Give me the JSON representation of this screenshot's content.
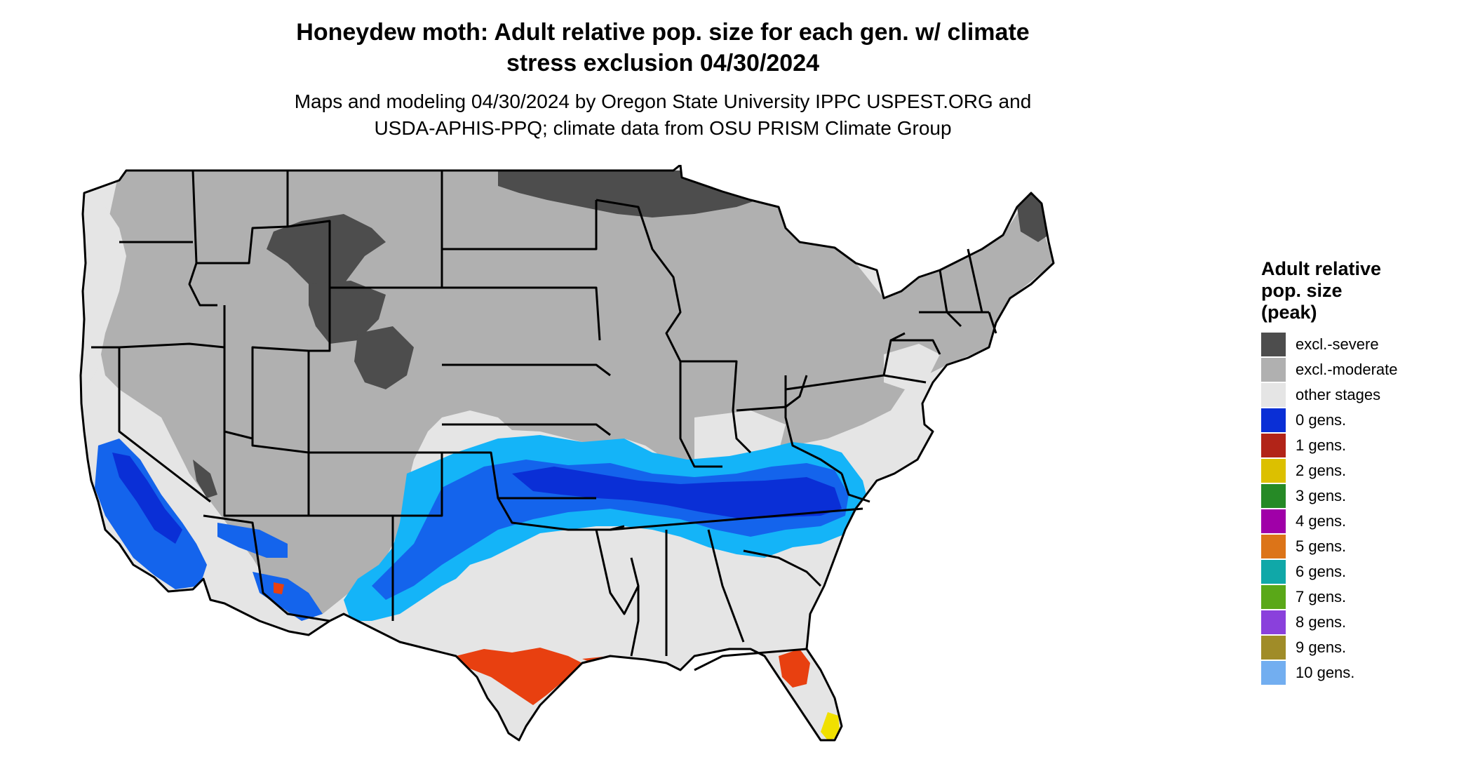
{
  "title_line1": "Honeydew moth: Adult relative pop. size for each gen. w/ climate",
  "title_line2": "stress exclusion 04/30/2024",
  "subtitle_line1": "Maps and modeling 04/30/2024 by Oregon State University IPPC USPEST.ORG and",
  "subtitle_line2": "USDA-APHIS-PPQ; climate data from OSU PRISM Climate Group",
  "legend": {
    "title_line1": "Adult relative",
    "title_line2": "pop. size",
    "title_line3": "(peak)",
    "items": [
      {
        "label": "excl.-severe",
        "color": "#4d4d4d"
      },
      {
        "label": "excl.-moderate",
        "color": "#b0b0b0"
      },
      {
        "label": "other stages",
        "color": "#e5e5e5"
      },
      {
        "label": "0 gens.",
        "color": "#0a2fd6"
      },
      {
        "label": "1 gens.",
        "color": "#b22418"
      },
      {
        "label": "2 gens.",
        "color": "#dcc000"
      },
      {
        "label": "3 gens.",
        "color": "#268a26"
      },
      {
        "label": "4 gens.",
        "color": "#a000a8"
      },
      {
        "label": "5 gens.",
        "color": "#dc7418"
      },
      {
        "label": "6 gens.",
        "color": "#10a8a8"
      },
      {
        "label": "7 gens.",
        "color": "#5aa818"
      },
      {
        "label": "8 gens.",
        "color": "#8a40dc"
      },
      {
        "label": "9 gens.",
        "color": "#a08c28"
      },
      {
        "label": "10 gens.",
        "color": "#72aef0"
      }
    ]
  },
  "map_colors": {
    "severe": "#4d4d4d",
    "moderate": "#b0b0b0",
    "other": "#e5e5e5",
    "blue_dark": "#0a2fd6",
    "blue_mid": "#1464ec",
    "blue_light": "#14b4f8",
    "red": "#e84010",
    "yellow": "#f0e000",
    "border": "#000000"
  }
}
